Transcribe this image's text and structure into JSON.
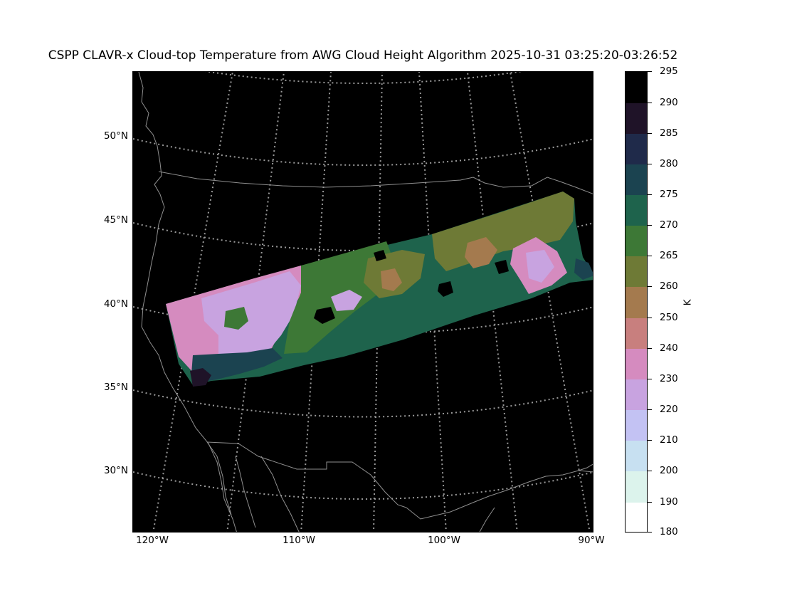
{
  "title": "CSPP CLAVR-x Cloud-top Temperature from AWG Cloud Height Algorithm 2025-10-31 03:25:20-03:26:52",
  "latitude_labels": [
    "50°N",
    "45°N",
    "40°N",
    "35°N",
    "30°N"
  ],
  "longitude_labels": [
    "120°W",
    "110°W",
    "100°W",
    "90°W"
  ],
  "colorbar": {
    "unit": "K",
    "tick_labels": [
      "295",
      "290",
      "285",
      "280",
      "275",
      "270",
      "265",
      "260",
      "250",
      "240",
      "230",
      "220",
      "210",
      "200",
      "190",
      "180"
    ],
    "colors_top_to_bottom": [
      "#000000",
      "#1f1328",
      "#1f2a4a",
      "#1b4350",
      "#1e634c",
      "#3d7836",
      "#6e7a36",
      "#a47a4e",
      "#c87f7e",
      "#d58bbf",
      "#c8a3e0",
      "#c3c2f3",
      "#c7e0f1",
      "#dcf3ec",
      "#ffffff"
    ]
  },
  "colors": {
    "background": "#000000",
    "coastline": "#8f8f8f",
    "gridline": "#9a9a9a"
  }
}
